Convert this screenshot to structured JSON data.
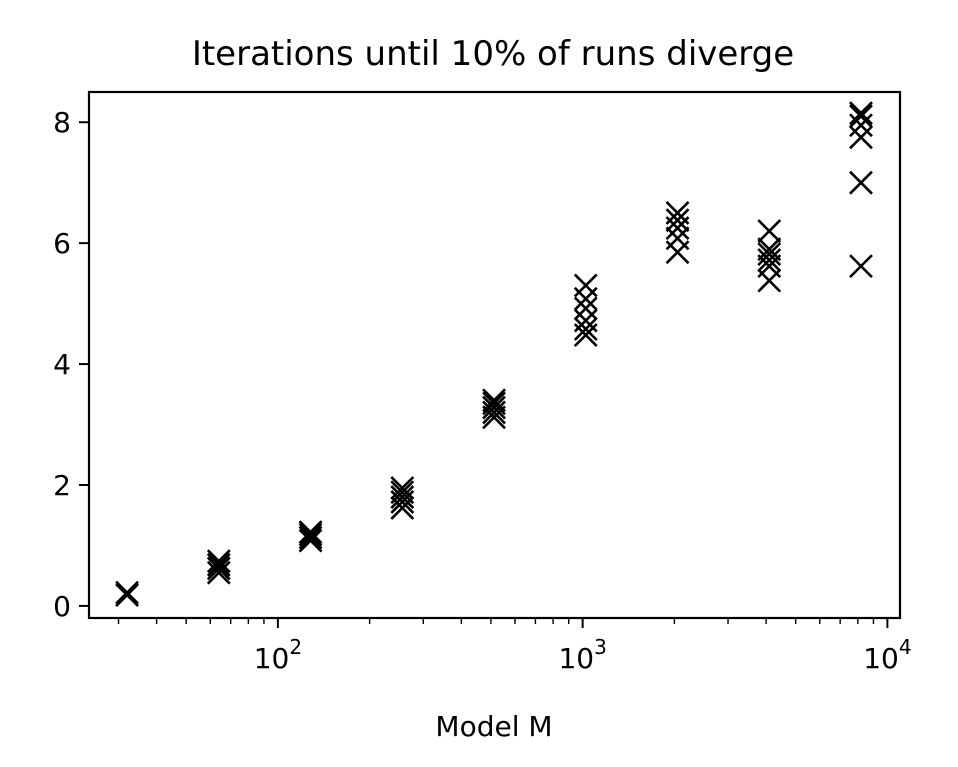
{
  "chart_data": {
    "type": "scatter",
    "title": "Iterations until 10% of runs diverge",
    "xlabel": "Model M",
    "ylabel": "",
    "xscale": "log",
    "xlim": [
      24,
      11000
    ],
    "ylim": [
      -0.2,
      8.5
    ],
    "yticks": [
      0,
      2,
      4,
      6,
      8
    ],
    "ytick_labels": [
      "0",
      "2",
      "4",
      "6",
      "8"
    ],
    "xticks": [
      {
        "value": 100,
        "base": "10",
        "exponent": "2"
      },
      {
        "value": 1000,
        "base": "10",
        "exponent": "3"
      },
      {
        "value": 10000,
        "base": "10",
        "exponent": "4"
      }
    ],
    "marker": "x",
    "marker_color": "#000000",
    "grid": false,
    "points": [
      {
        "x": 32,
        "y": 0.18
      },
      {
        "x": 32,
        "y": 0.22
      },
      {
        "x": 64,
        "y": 0.55
      },
      {
        "x": 64,
        "y": 0.62
      },
      {
        "x": 64,
        "y": 0.68
      },
      {
        "x": 64,
        "y": 0.74
      },
      {
        "x": 128,
        "y": 1.08
      },
      {
        "x": 128,
        "y": 1.13
      },
      {
        "x": 128,
        "y": 1.18
      },
      {
        "x": 128,
        "y": 1.22
      },
      {
        "x": 256,
        "y": 1.62
      },
      {
        "x": 256,
        "y": 1.72
      },
      {
        "x": 256,
        "y": 1.8
      },
      {
        "x": 256,
        "y": 1.88
      },
      {
        "x": 256,
        "y": 1.95
      },
      {
        "x": 512,
        "y": 3.12
      },
      {
        "x": 512,
        "y": 3.2
      },
      {
        "x": 512,
        "y": 3.28
      },
      {
        "x": 512,
        "y": 3.35
      },
      {
        "x": 512,
        "y": 3.4
      },
      {
        "x": 1024,
        "y": 4.48
      },
      {
        "x": 1024,
        "y": 4.58
      },
      {
        "x": 1024,
        "y": 4.72
      },
      {
        "x": 1024,
        "y": 4.92
      },
      {
        "x": 1024,
        "y": 5.08
      },
      {
        "x": 1024,
        "y": 5.3
      },
      {
        "x": 2048,
        "y": 5.85
      },
      {
        "x": 2048,
        "y": 6.08
      },
      {
        "x": 2048,
        "y": 6.25
      },
      {
        "x": 2048,
        "y": 6.38
      },
      {
        "x": 2048,
        "y": 6.5
      },
      {
        "x": 4096,
        "y": 5.38
      },
      {
        "x": 4096,
        "y": 5.62
      },
      {
        "x": 4096,
        "y": 5.72
      },
      {
        "x": 4096,
        "y": 5.82
      },
      {
        "x": 4096,
        "y": 5.9
      },
      {
        "x": 4096,
        "y": 6.2
      },
      {
        "x": 8192,
        "y": 5.62
      },
      {
        "x": 8192,
        "y": 7.0
      },
      {
        "x": 8192,
        "y": 7.75
      },
      {
        "x": 8192,
        "y": 7.95
      },
      {
        "x": 8192,
        "y": 8.1
      },
      {
        "x": 8192,
        "y": 8.15
      }
    ]
  }
}
